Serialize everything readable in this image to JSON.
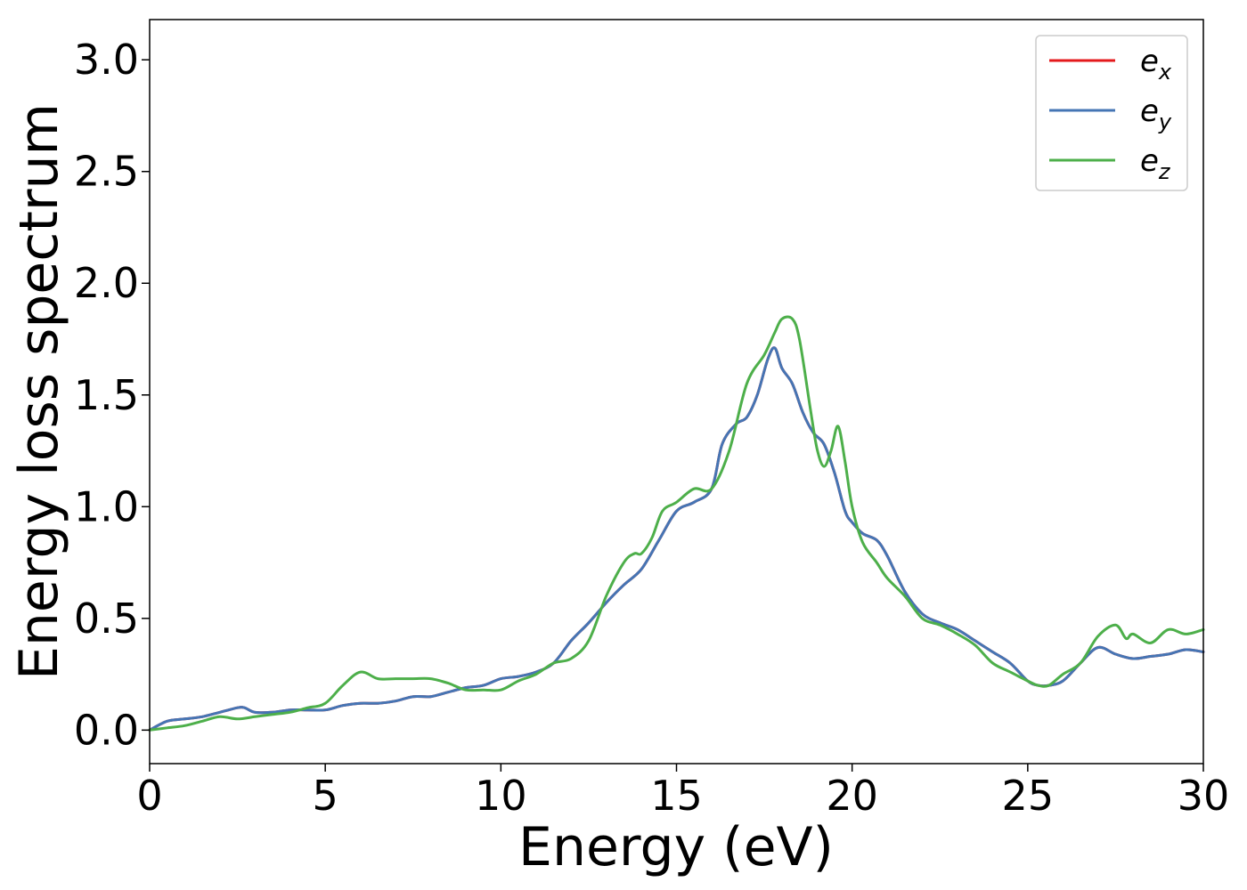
{
  "chart_data": {
    "type": "line",
    "title": "",
    "xlabel": "Energy (eV)",
    "ylabel": "Energy loss spectrum",
    "xlim": [
      0,
      30
    ],
    "ylim": [
      -0.15,
      3.18
    ],
    "xticks": [
      0,
      5,
      10,
      15,
      20,
      25,
      30
    ],
    "xtick_labels": [
      "0",
      "5",
      "10",
      "15",
      "20",
      "25",
      "30"
    ],
    "yticks": [
      0.0,
      0.5,
      1.0,
      1.5,
      2.0,
      2.5,
      3.0
    ],
    "ytick_labels": [
      "0.0",
      "0.5",
      "1.0",
      "1.5",
      "2.0",
      "2.5",
      "3.0"
    ],
    "grid": false,
    "legend_position": "top-right",
    "series": [
      {
        "name": "e_x",
        "legend_base": "e",
        "legend_sub": "x",
        "color": "#e41a1c",
        "x": [
          0,
          0.5,
          1,
          1.5,
          2,
          2.5,
          2.7,
          3,
          3.5,
          4,
          4.5,
          5,
          5.5,
          6,
          6.5,
          7,
          7.5,
          8,
          8.5,
          9,
          9.5,
          10,
          10.5,
          11,
          11.5,
          12,
          12.5,
          13,
          13.5,
          14,
          14.5,
          15,
          15.5,
          16,
          16.3,
          16.7,
          17,
          17.3,
          17.6,
          17.8,
          18,
          18.3,
          18.6,
          18.9,
          19.2,
          19.5,
          19.8,
          20,
          20.3,
          20.7,
          21,
          21.5,
          22,
          22.5,
          23,
          23.5,
          24,
          24.5,
          25,
          25.3,
          25.6,
          26,
          26.5,
          27,
          27.5,
          28,
          28.5,
          29,
          29.5,
          30
        ],
        "y": [
          0,
          0.04,
          0.05,
          0.06,
          0.08,
          0.1,
          0.1,
          0.08,
          0.08,
          0.09,
          0.09,
          0.09,
          0.11,
          0.12,
          0.12,
          0.13,
          0.15,
          0.15,
          0.17,
          0.19,
          0.2,
          0.23,
          0.24,
          0.26,
          0.3,
          0.4,
          0.48,
          0.57,
          0.65,
          0.72,
          0.85,
          0.98,
          1.02,
          1.08,
          1.28,
          1.37,
          1.4,
          1.5,
          1.66,
          1.71,
          1.62,
          1.55,
          1.42,
          1.33,
          1.28,
          1.15,
          0.98,
          0.93,
          0.88,
          0.85,
          0.78,
          0.62,
          0.52,
          0.48,
          0.45,
          0.4,
          0.35,
          0.3,
          0.22,
          0.2,
          0.2,
          0.22,
          0.3,
          0.37,
          0.34,
          0.32,
          0.33,
          0.34,
          0.36,
          0.35
        ]
      },
      {
        "name": "e_y",
        "legend_base": "e",
        "legend_sub": "y",
        "color": "#4575b4",
        "x": [
          0,
          0.5,
          1,
          1.5,
          2,
          2.5,
          2.7,
          3,
          3.5,
          4,
          4.5,
          5,
          5.5,
          6,
          6.5,
          7,
          7.5,
          8,
          8.5,
          9,
          9.5,
          10,
          10.5,
          11,
          11.5,
          12,
          12.5,
          13,
          13.5,
          14,
          14.5,
          15,
          15.5,
          16,
          16.3,
          16.7,
          17,
          17.3,
          17.6,
          17.8,
          18,
          18.3,
          18.6,
          18.9,
          19.2,
          19.5,
          19.8,
          20,
          20.3,
          20.7,
          21,
          21.5,
          22,
          22.5,
          23,
          23.5,
          24,
          24.5,
          25,
          25.3,
          25.6,
          26,
          26.5,
          27,
          27.5,
          28,
          28.5,
          29,
          29.5,
          30
        ],
        "y": [
          0,
          0.04,
          0.05,
          0.06,
          0.08,
          0.1,
          0.1,
          0.08,
          0.08,
          0.09,
          0.09,
          0.09,
          0.11,
          0.12,
          0.12,
          0.13,
          0.15,
          0.15,
          0.17,
          0.19,
          0.2,
          0.23,
          0.24,
          0.26,
          0.3,
          0.4,
          0.48,
          0.57,
          0.65,
          0.72,
          0.85,
          0.98,
          1.02,
          1.08,
          1.28,
          1.37,
          1.4,
          1.5,
          1.66,
          1.71,
          1.62,
          1.55,
          1.42,
          1.33,
          1.28,
          1.15,
          0.98,
          0.93,
          0.88,
          0.85,
          0.78,
          0.62,
          0.52,
          0.48,
          0.45,
          0.4,
          0.35,
          0.3,
          0.22,
          0.2,
          0.2,
          0.22,
          0.3,
          0.37,
          0.34,
          0.32,
          0.33,
          0.34,
          0.36,
          0.35
        ]
      },
      {
        "name": "e_z",
        "legend_base": "e",
        "legend_sub": "z",
        "color": "#4daf4a",
        "x": [
          0,
          0.5,
          1,
          1.5,
          2,
          2.5,
          3,
          3.5,
          4,
          4.5,
          5,
          5.5,
          6,
          6.5,
          7,
          7.5,
          8,
          8.5,
          9,
          9.5,
          10,
          10.5,
          11,
          11.5,
          12,
          12.5,
          13,
          13.5,
          13.8,
          14,
          14.3,
          14.6,
          15,
          15.5,
          16,
          16.5,
          17,
          17.5,
          17.8,
          18,
          18.3,
          18.5,
          18.8,
          19,
          19.2,
          19.4,
          19.6,
          19.8,
          20,
          20.3,
          20.7,
          21,
          21.5,
          22,
          22.5,
          23,
          23.5,
          24,
          24.5,
          25,
          25.3,
          25.6,
          26,
          26.5,
          27,
          27.5,
          27.8,
          28,
          28.5,
          29,
          29.5,
          30
        ],
        "y": [
          0,
          0.01,
          0.02,
          0.04,
          0.06,
          0.05,
          0.06,
          0.07,
          0.08,
          0.1,
          0.12,
          0.2,
          0.26,
          0.23,
          0.23,
          0.23,
          0.23,
          0.21,
          0.18,
          0.18,
          0.18,
          0.22,
          0.25,
          0.3,
          0.32,
          0.4,
          0.6,
          0.75,
          0.79,
          0.79,
          0.86,
          0.98,
          1.02,
          1.08,
          1.08,
          1.25,
          1.55,
          1.68,
          1.78,
          1.84,
          1.84,
          1.75,
          1.45,
          1.26,
          1.18,
          1.25,
          1.36,
          1.2,
          1.0,
          0.84,
          0.75,
          0.68,
          0.6,
          0.5,
          0.47,
          0.43,
          0.38,
          0.3,
          0.26,
          0.22,
          0.2,
          0.2,
          0.25,
          0.3,
          0.42,
          0.47,
          0.41,
          0.43,
          0.39,
          0.45,
          0.43,
          0.45
        ]
      }
    ]
  }
}
